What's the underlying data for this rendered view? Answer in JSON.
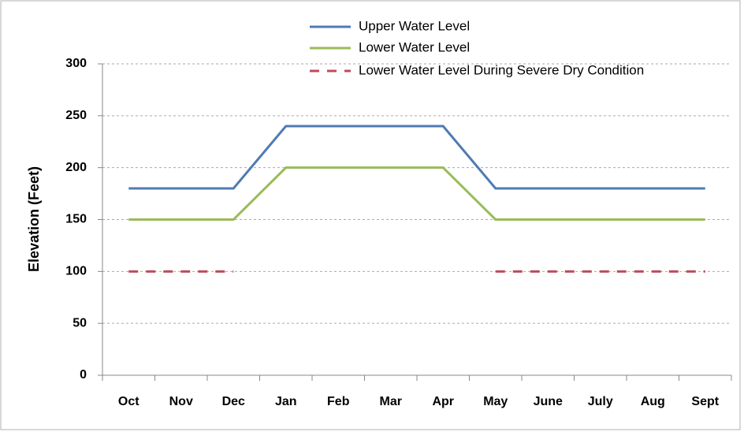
{
  "chart_data": {
    "type": "line",
    "y_label": "Elevation (Feet)",
    "categories": [
      "Oct",
      "Nov",
      "Dec",
      "Jan",
      "Feb",
      "Mar",
      "Apr",
      "May",
      "June",
      "July",
      "Aug",
      "Sept"
    ],
    "series": [
      {
        "name": "Upper Water Level",
        "color": "#4f7bb3",
        "line_style": "solid",
        "values": [
          180,
          180,
          180,
          240,
          240,
          240,
          240,
          180,
          180,
          180,
          180,
          180
        ]
      },
      {
        "name": "Lower Water Level",
        "color": "#9bbb59",
        "line_style": "solid",
        "values": [
          150,
          150,
          150,
          200,
          200,
          200,
          200,
          150,
          150,
          150,
          150,
          150
        ]
      },
      {
        "name": "Lower Water Level During Severe Dry Condition",
        "color": "#be4b5e",
        "line_style": "dashed",
        "values": [
          100,
          100,
          100,
          null,
          null,
          null,
          null,
          100,
          100,
          100,
          100,
          100
        ]
      }
    ],
    "ylim": [
      0,
      300
    ],
    "yticks": [
      0,
      50,
      100,
      150,
      200,
      250,
      300
    ],
    "grid": true,
    "legend": "top"
  }
}
